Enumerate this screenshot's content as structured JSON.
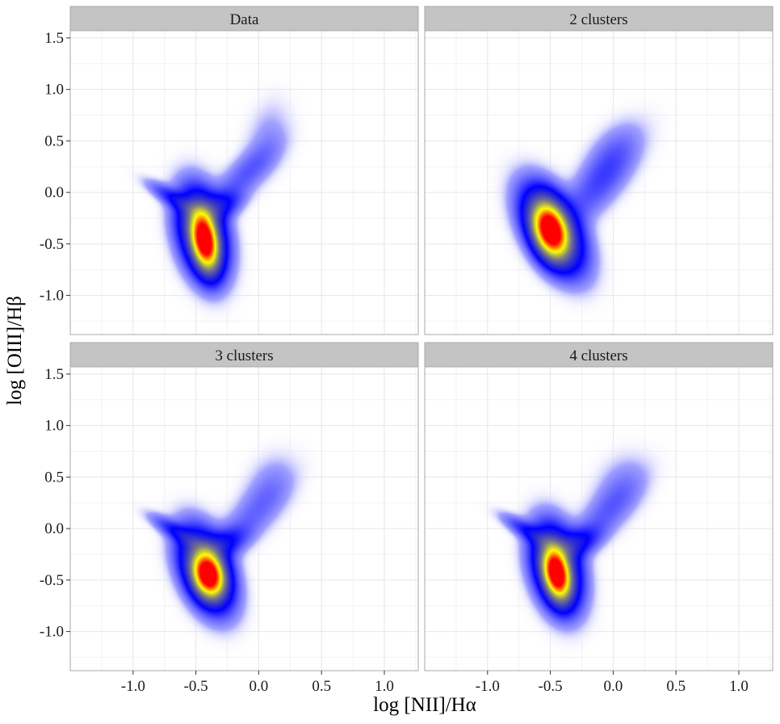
{
  "chart_data": {
    "type": "heatmap",
    "xlabel": "log [NII]/Hα",
    "ylabel": "log [OIII]/Hβ",
    "xlim": [
      -1.5,
      1.27
    ],
    "ylim": [
      -1.38,
      1.57
    ],
    "x_ticks": [
      -1.0,
      -0.5,
      0.0,
      0.5,
      1.0
    ],
    "x_tick_labels": [
      "-1.0",
      "-0.5",
      "0.0",
      "0.5",
      "1.0"
    ],
    "y_ticks": [
      -1.0,
      -0.5,
      0.0,
      0.5,
      1.0,
      1.5
    ],
    "y_tick_labels": [
      "-1.0",
      "-0.5",
      "0.0",
      "0.5",
      "1.0",
      "1.5"
    ],
    "grid": true,
    "colorscale": [
      "#ffffff",
      "#0000ff",
      "#808080",
      "#ffff00",
      "#ff0000"
    ],
    "panels": [
      {
        "title": "Data",
        "components": [
          {
            "x": -0.43,
            "y": -0.47,
            "sx": 0.065,
            "sy": 0.17,
            "rho": -0.3,
            "w": 1.0
          },
          {
            "x": -0.45,
            "y": -0.4,
            "sx": 0.12,
            "sy": 0.26,
            "rho": -0.3,
            "w": 0.35
          },
          {
            "x": -0.65,
            "y": -0.08,
            "sx": 0.14,
            "sy": 0.11,
            "rho": -0.85,
            "w": 0.09
          },
          {
            "x": -0.33,
            "y": -0.15,
            "sx": 0.12,
            "sy": 0.1,
            "rho": 0.5,
            "w": 0.11
          },
          {
            "x": -0.1,
            "y": 0.18,
            "sx": 0.17,
            "sy": 0.2,
            "rho": 0.75,
            "w": 0.05
          },
          {
            "x": 0.07,
            "y": 0.55,
            "sx": 0.12,
            "sy": 0.24,
            "rho": 0.3,
            "w": 0.02
          }
        ]
      },
      {
        "title": "2 clusters",
        "components": [
          {
            "x": -0.5,
            "y": -0.37,
            "sx": 0.085,
            "sy": 0.16,
            "rho": -0.3,
            "w": 1.0
          },
          {
            "x": -0.48,
            "y": -0.36,
            "sx": 0.15,
            "sy": 0.25,
            "rho": -0.5,
            "w": 0.35
          },
          {
            "x": -0.1,
            "y": 0.1,
            "sx": 0.2,
            "sy": 0.28,
            "rho": 0.75,
            "w": 0.06
          },
          {
            "x": -0.02,
            "y": 0.4,
            "sx": 0.14,
            "sy": 0.2,
            "rho": 0.5,
            "w": 0.025
          }
        ]
      },
      {
        "title": "3 clusters",
        "components": [
          {
            "x": -0.4,
            "y": -0.45,
            "sx": 0.075,
            "sy": 0.13,
            "rho": -0.2,
            "w": 1.0
          },
          {
            "x": -0.42,
            "y": -0.4,
            "sx": 0.13,
            "sy": 0.24,
            "rho": -0.4,
            "w": 0.35
          },
          {
            "x": -0.63,
            "y": -0.05,
            "sx": 0.14,
            "sy": 0.11,
            "rho": -0.85,
            "w": 0.09
          },
          {
            "x": -0.28,
            "y": -0.15,
            "sx": 0.12,
            "sy": 0.1,
            "rho": 0.5,
            "w": 0.09
          },
          {
            "x": -0.05,
            "y": 0.12,
            "sx": 0.2,
            "sy": 0.25,
            "rho": 0.75,
            "w": 0.04
          },
          {
            "x": 0.08,
            "y": 0.45,
            "sx": 0.13,
            "sy": 0.2,
            "rho": 0.3,
            "w": 0.02
          }
        ]
      },
      {
        "title": "4 clusters",
        "components": [
          {
            "x": -0.45,
            "y": -0.44,
            "sx": 0.065,
            "sy": 0.15,
            "rho": -0.3,
            "w": 1.0
          },
          {
            "x": -0.45,
            "y": -0.38,
            "sx": 0.12,
            "sy": 0.25,
            "rho": -0.3,
            "w": 0.35
          },
          {
            "x": -0.65,
            "y": -0.05,
            "sx": 0.14,
            "sy": 0.11,
            "rho": -0.85,
            "w": 0.09
          },
          {
            "x": -0.3,
            "y": -0.15,
            "sx": 0.12,
            "sy": 0.1,
            "rho": 0.5,
            "w": 0.11
          },
          {
            "x": -0.05,
            "y": 0.15,
            "sx": 0.19,
            "sy": 0.24,
            "rho": 0.75,
            "w": 0.045
          },
          {
            "x": 0.05,
            "y": 0.45,
            "sx": 0.14,
            "sy": 0.2,
            "rho": 0.3,
            "w": 0.02
          }
        ]
      }
    ]
  }
}
